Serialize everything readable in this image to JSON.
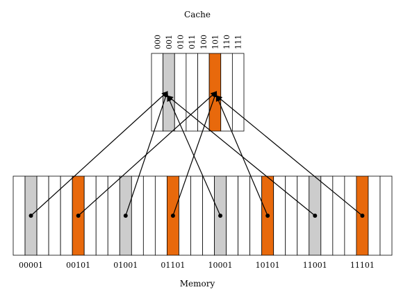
{
  "diagram": {
    "cache_title": "Cache",
    "memory_title": "Memory",
    "cache_slots": [
      {
        "label": "000",
        "state": "empty"
      },
      {
        "label": "001",
        "state": "gray"
      },
      {
        "label": "010",
        "state": "empty"
      },
      {
        "label": "011",
        "state": "empty"
      },
      {
        "label": "100",
        "state": "empty"
      },
      {
        "label": "101",
        "state": "orange"
      },
      {
        "label": "110",
        "state": "empty"
      },
      {
        "label": "111",
        "state": "empty"
      }
    ],
    "memory_cell_count": 32,
    "memory_blocks": [
      {
        "address": "00001",
        "index": 1,
        "color": "gray",
        "target_slot": 1
      },
      {
        "address": "00101",
        "index": 5,
        "color": "orange",
        "target_slot": 5
      },
      {
        "address": "01001",
        "index": 9,
        "color": "gray",
        "target_slot": 1
      },
      {
        "address": "01101",
        "index": 13,
        "color": "orange",
        "target_slot": 5
      },
      {
        "address": "10001",
        "index": 17,
        "color": "gray",
        "target_slot": 1
      },
      {
        "address": "10101",
        "index": 21,
        "color": "orange",
        "target_slot": 5
      },
      {
        "address": "11001",
        "index": 25,
        "color": "gray",
        "target_slot": 1
      },
      {
        "address": "11101",
        "index": 29,
        "color": "orange",
        "target_slot": 5
      }
    ],
    "colors": {
      "gray": "#cccccc",
      "orange": "#e8690c",
      "line": "#000000",
      "cell_border": "#000000"
    }
  }
}
